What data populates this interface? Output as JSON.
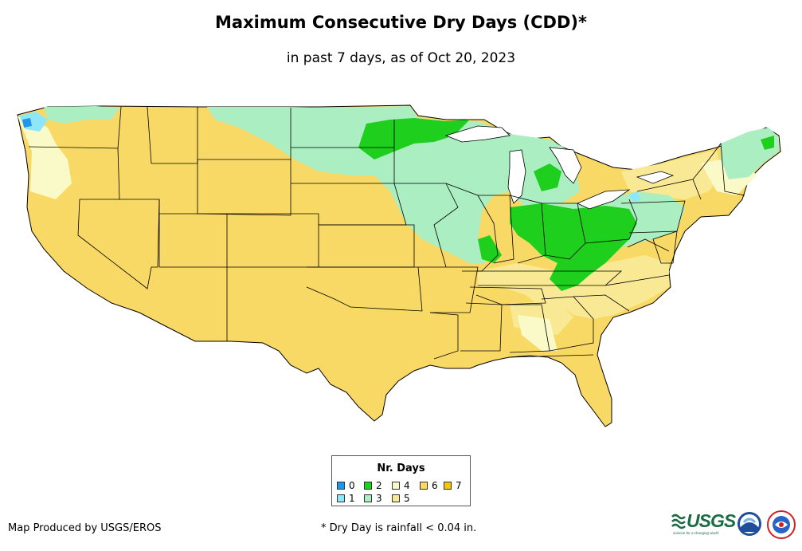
{
  "title": "Maximum Consecutive Dry Days (CDD)*",
  "subtitle": "in past 7 days, as of Oct 20, 2023",
  "legend": {
    "title": "Nr. Days",
    "items": [
      {
        "label": "0",
        "color": "#2196e8"
      },
      {
        "label": "1",
        "color": "#8ee7f8"
      },
      {
        "label": "2",
        "color": "#1ecf1e"
      },
      {
        "label": "3",
        "color": "#aaeec2"
      },
      {
        "label": "4",
        "color": "#fafac8"
      },
      {
        "label": "5",
        "color": "#fae994"
      },
      {
        "label": "6",
        "color": "#f9d966"
      },
      {
        "label": "7",
        "color": "#f5c514"
      }
    ]
  },
  "footer": {
    "credit": "Map Produced by USGS/EROS",
    "note": "* Dry Day is rainfall < 0.04 in."
  },
  "logos": {
    "usgs_label": "USGS",
    "usgs_tagline": "science for a changing world"
  }
}
